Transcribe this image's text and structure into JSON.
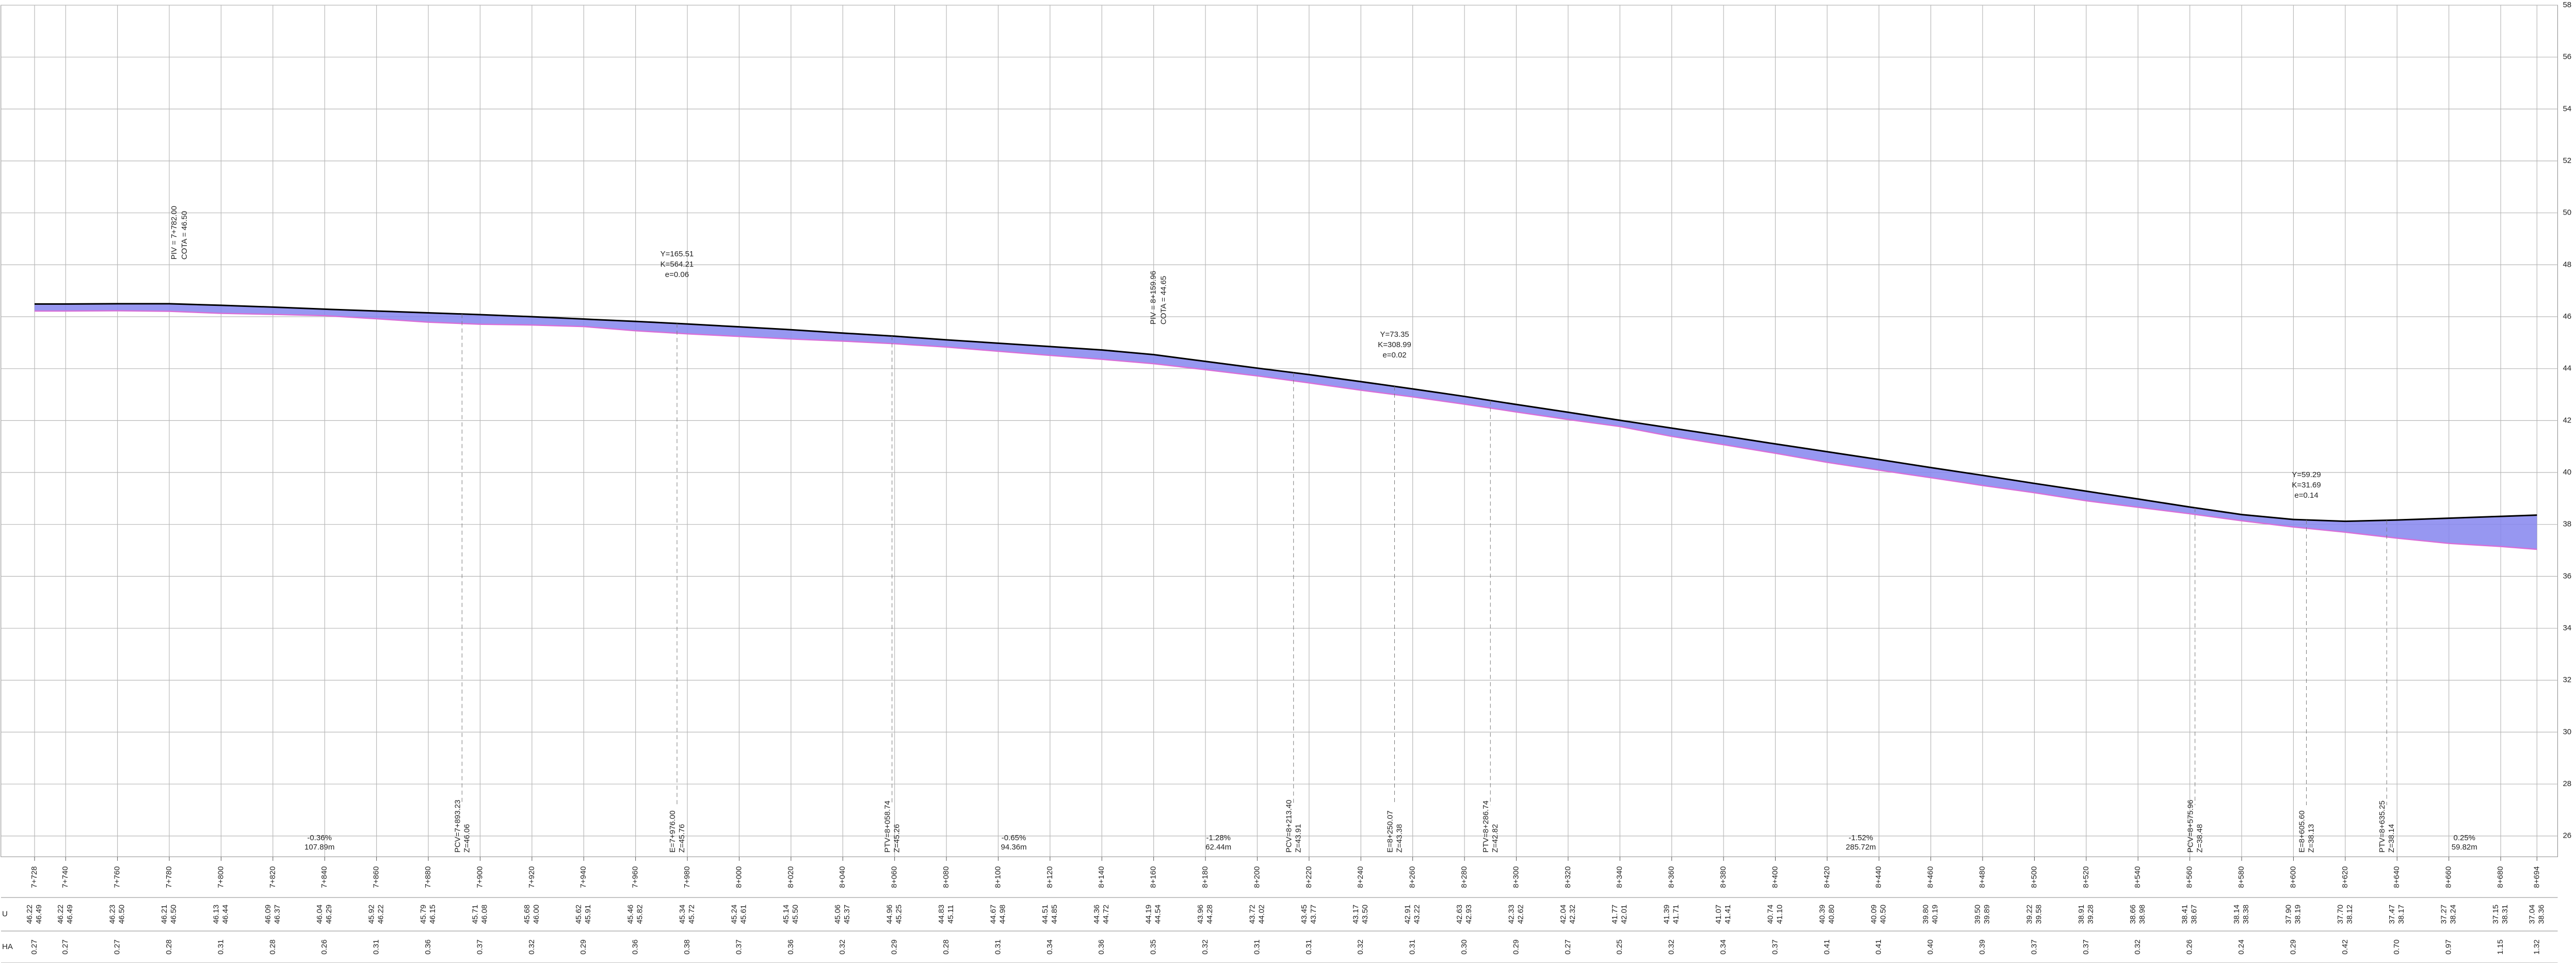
{
  "chart_data": {
    "type": "profile",
    "row_labels": [
      "U",
      "HA"
    ],
    "x": [
      7728,
      7740,
      7760,
      7780,
      7800,
      7820,
      7840,
      7860,
      7880,
      7900,
      7920,
      7940,
      7960,
      7980,
      8000,
      8020,
      8040,
      8060,
      8080,
      8100,
      8120,
      8140,
      8160,
      8180,
      8200,
      8220,
      8240,
      8260,
      8280,
      8300,
      8320,
      8340,
      8360,
      8380,
      8400,
      8420,
      8440,
      8460,
      8480,
      8500,
      8520,
      8540,
      8560,
      8580,
      8600,
      8620,
      8640,
      8660,
      8680,
      8694
    ],
    "xlim": [
      7715,
      8702
    ],
    "xticks": [
      {
        "value": 7728,
        "label": "7+728"
      },
      {
        "value": 7740,
        "label": "7+740"
      },
      {
        "value": 7760,
        "label": "7+760"
      },
      {
        "value": 7780,
        "label": "7+780"
      },
      {
        "value": 7800,
        "label": "7+800"
      },
      {
        "value": 7820,
        "label": "7+820"
      },
      {
        "value": 7840,
        "label": "7+840"
      },
      {
        "value": 7860,
        "label": "7+860"
      },
      {
        "value": 7880,
        "label": "7+880"
      },
      {
        "value": 7900,
        "label": "7+900"
      },
      {
        "value": 7920,
        "label": "7+920"
      },
      {
        "value": 7940,
        "label": "7+940"
      },
      {
        "value": 7960,
        "label": "7+960"
      },
      {
        "value": 7980,
        "label": "7+980"
      },
      {
        "value": 8000,
        "label": "8+000"
      },
      {
        "value": 8020,
        "label": "8+020"
      },
      {
        "value": 8040,
        "label": "8+040"
      },
      {
        "value": 8060,
        "label": "8+060"
      },
      {
        "value": 8080,
        "label": "8+080"
      },
      {
        "value": 8100,
        "label": "8+100"
      },
      {
        "value": 8120,
        "label": "8+120"
      },
      {
        "value": 8140,
        "label": "8+140"
      },
      {
        "value": 8160,
        "label": "8+160"
      },
      {
        "value": 8180,
        "label": "8+180"
      },
      {
        "value": 8200,
        "label": "8+200"
      },
      {
        "value": 8220,
        "label": "8+220"
      },
      {
        "value": 8240,
        "label": "8+240"
      },
      {
        "value": 8260,
        "label": "8+260"
      },
      {
        "value": 8280,
        "label": "8+280"
      },
      {
        "value": 8300,
        "label": "8+300"
      },
      {
        "value": 8320,
        "label": "8+320"
      },
      {
        "value": 8340,
        "label": "8+340"
      },
      {
        "value": 8360,
        "label": "8+360"
      },
      {
        "value": 8380,
        "label": "8+380"
      },
      {
        "value": 8400,
        "label": "8+400"
      },
      {
        "value": 8420,
        "label": "8+420"
      },
      {
        "value": 8440,
        "label": "8+440"
      },
      {
        "value": 8460,
        "label": "8+460"
      },
      {
        "value": 8480,
        "label": "8+480"
      },
      {
        "value": 8500,
        "label": "8+500"
      },
      {
        "value": 8520,
        "label": "8+520"
      },
      {
        "value": 8540,
        "label": "8+540"
      },
      {
        "value": 8560,
        "label": "8+560"
      },
      {
        "value": 8580,
        "label": "8+580"
      },
      {
        "value": 8600,
        "label": "8+600"
      },
      {
        "value": 8620,
        "label": "8+620"
      },
      {
        "value": 8640,
        "label": "8+640"
      },
      {
        "value": 8660,
        "label": "8+660"
      },
      {
        "value": 8680,
        "label": "8+680"
      },
      {
        "value": 8694,
        "label": "8+694"
      }
    ],
    "ylim": [
      25.2,
      58
    ],
    "yticks": [
      26,
      28,
      30,
      32,
      34,
      36,
      38,
      40,
      42,
      44,
      46,
      48,
      50,
      52,
      54,
      56,
      58
    ],
    "grid": true,
    "fill_color": "#8585ee",
    "series": [
      {
        "color": "#d86fd8",
        "values": [
          46.22,
          46.22,
          46.23,
          46.21,
          46.13,
          46.09,
          46.04,
          45.92,
          45.79,
          45.71,
          45.68,
          45.62,
          45.46,
          45.34,
          45.24,
          45.14,
          45.06,
          44.96,
          44.83,
          44.67,
          44.51,
          44.36,
          44.19,
          43.96,
          43.72,
          43.45,
          43.17,
          42.91,
          42.63,
          42.33,
          42.04,
          41.77,
          41.39,
          41.07,
          40.74,
          40.39,
          40.09,
          39.8,
          39.5,
          39.22,
          38.91,
          38.66,
          38.41,
          38.14,
          37.9,
          37.7,
          37.47,
          37.27,
          37.15,
          37.04
        ],
        "value_labels": [
          "46.22",
          "46.22",
          "46.23",
          "46.21",
          "46.13",
          "46.09",
          "46.04",
          "45.92",
          "45.79",
          "45.71",
          "45.68",
          "45.62",
          "45.46",
          "45.34",
          "45.24",
          "45.14",
          "45.06",
          "44.96",
          "44.83",
          "44.67",
          "44.51",
          "44.36",
          "44.19",
          "43.96",
          "43.72",
          "43.45",
          "43.17",
          "42.91",
          "42.63",
          "42.33",
          "42.04",
          "41.77",
          "41.39",
          "41.07",
          "40.74",
          "40.39",
          "40.09",
          "39.80",
          "39.50",
          "39.22",
          "38.91",
          "38.66",
          "38.41",
          "38.14",
          "37.90",
          "37.70",
          "37.47",
          "37.27",
          "37.15",
          "37.04"
        ]
      },
      {
        "color": "#000000",
        "values": [
          46.49,
          46.49,
          46.5,
          46.5,
          46.44,
          46.37,
          46.29,
          46.22,
          46.15,
          46.08,
          46.0,
          45.91,
          45.82,
          45.72,
          45.61,
          45.5,
          45.37,
          45.25,
          45.11,
          44.98,
          44.85,
          44.72,
          44.54,
          44.28,
          44.02,
          43.77,
          43.5,
          43.22,
          42.93,
          42.62,
          42.32,
          42.01,
          41.71,
          41.41,
          41.1,
          40.8,
          40.5,
          40.19,
          39.89,
          39.58,
          39.28,
          38.98,
          38.67,
          38.38,
          38.19,
          38.12,
          38.17,
          38.24,
          38.31,
          38.36
        ],
        "value_labels": [
          "46.49",
          "46.49",
          "46.50",
          "46.50",
          "46.44",
          "46.37",
          "46.29",
          "46.22",
          "46.15",
          "46.08",
          "46.00",
          "45.91",
          "45.82",
          "45.72",
          "45.61",
          "45.50",
          "45.37",
          "45.25",
          "45.11",
          "44.98",
          "44.85",
          "44.72",
          "44.54",
          "44.28",
          "44.02",
          "43.77",
          "43.50",
          "43.22",
          "42.93",
          "42.62",
          "42.32",
          "42.01",
          "41.71",
          "41.41",
          "41.10",
          "40.80",
          "40.50",
          "40.19",
          "39.89",
          "39.58",
          "39.28",
          "38.98",
          "38.67",
          "38.38",
          "38.19",
          "38.12",
          "38.17",
          "38.24",
          "38.31",
          "38.36"
        ]
      },
      {
        "values": [
          0.27,
          0.27,
          0.27,
          0.28,
          0.31,
          0.28,
          0.26,
          0.31,
          0.36,
          0.37,
          0.32,
          0.29,
          0.36,
          0.38,
          0.37,
          0.36,
          0.32,
          0.29,
          0.28,
          0.31,
          0.34,
          0.36,
          0.35,
          0.32,
          0.31,
          0.31,
          0.32,
          0.31,
          0.3,
          0.29,
          0.27,
          0.25,
          0.32,
          0.34,
          0.37,
          0.41,
          0.41,
          0.4,
          0.39,
          0.37,
          0.37,
          0.32,
          0.26,
          0.24,
          0.29,
          0.42,
          0.7,
          0.97,
          1.15,
          1.32
        ],
        "value_labels": [
          "0.27",
          "0.27",
          "0.27",
          "0.28",
          "0.31",
          "0.28",
          "0.26",
          "0.31",
          "0.36",
          "0.37",
          "0.32",
          "0.29",
          "0.36",
          "0.38",
          "0.37",
          "0.36",
          "0.32",
          "0.29",
          "0.28",
          "0.31",
          "0.34",
          "0.36",
          "0.35",
          "0.32",
          "0.31",
          "0.31",
          "0.32",
          "0.31",
          "0.30",
          "0.29",
          "0.27",
          "0.25",
          "0.32",
          "0.34",
          "0.37",
          "0.41",
          "0.41",
          "0.40",
          "0.39",
          "0.37",
          "0.37",
          "0.32",
          "0.26",
          "0.24",
          "0.29",
          "0.42",
          "0.70",
          "0.97",
          "1.15",
          "1.32"
        ]
      }
    ],
    "annotations": [
      {
        "lines": [
          "PIV = 7+782.00",
          "COTA =  46.50"
        ],
        "x": 7782,
        "y": 48.2,
        "rotate": true
      },
      {
        "lines": [
          "Y=165.51",
          "K=564.21",
          "e=0.06"
        ],
        "x": 7976,
        "y": 48.4,
        "rotate": false
      },
      {
        "lines": [
          "PIV = 8+159.96",
          "COTA =  44.65"
        ],
        "x": 8160,
        "y": 45.7,
        "rotate": true
      },
      {
        "lines": [
          "Y=73.35",
          "K=308.99",
          "e=0.02"
        ],
        "x": 8253,
        "y": 45.3,
        "rotate": false
      },
      {
        "lines": [
          "Y=59.29",
          "K=31.69",
          "e=0.14"
        ],
        "x": 8605,
        "y": 39.9,
        "rotate": false
      }
    ],
    "markers": [
      {
        "lines": [
          "PCV=7+893.23",
          "Z=46.06"
        ],
        "x": 7893
      },
      {
        "lines": [
          "E=7+976.00",
          "Z=45.76"
        ],
        "x": 7976
      },
      {
        "lines": [
          "PTV=8+058.74",
          "Z=45.26"
        ],
        "x": 8059
      },
      {
        "lines": [
          "PCV=8+213.40",
          "Z=43.91"
        ],
        "x": 8214
      },
      {
        "lines": [
          "E=8+250.07",
          "Z=43.38"
        ],
        "x": 8253
      },
      {
        "lines": [
          "PTV=8+286.74",
          "Z=42.82"
        ],
        "x": 8290
      },
      {
        "lines": [
          "PCV=8+575.96",
          "Z=38.48"
        ],
        "x": 8562
      },
      {
        "lines": [
          "E=8+605.60",
          "Z=38.13"
        ],
        "x": 8605
      },
      {
        "lines": [
          "PTV=8+635.25",
          "Z=38.14"
        ],
        "x": 8636
      }
    ],
    "grades": [
      {
        "lines": [
          "-0.36%",
          "107.89m"
        ],
        "x": 7838
      },
      {
        "lines": [
          "-0.65%",
          "94.36m"
        ],
        "x": 8106
      },
      {
        "lines": [
          "-1.28%",
          "62.44m"
        ],
        "x": 8185
      },
      {
        "lines": [
          "-1.52%",
          "285.72m"
        ],
        "x": 8433
      },
      {
        "lines": [
          "0.25%",
          "59.82m"
        ],
        "x": 8666
      }
    ]
  }
}
